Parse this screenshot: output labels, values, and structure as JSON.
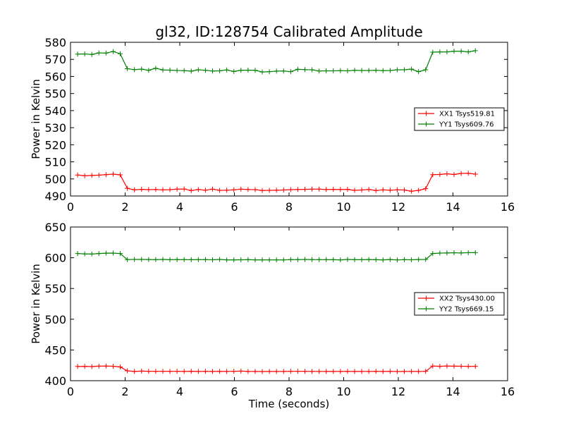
{
  "chart_data": [
    {
      "type": "line",
      "title": "gl32, ID:128754 Calibrated Amplitude",
      "xlabel": "",
      "ylabel": "Power in Kelvin",
      "xlim": [
        0,
        16
      ],
      "ylim": [
        490,
        580
      ],
      "xticks": [
        "0",
        "2",
        "4",
        "6",
        "8",
        "10",
        "12",
        "14",
        "16"
      ],
      "yticks": [
        "490",
        "500",
        "510",
        "520",
        "530",
        "540",
        "550",
        "560",
        "570",
        "580"
      ],
      "legend_position": "right",
      "x": [
        0.26,
        0.52,
        0.78,
        1.04,
        1.3,
        1.56,
        1.82,
        2.08,
        2.34,
        2.6,
        2.86,
        3.12,
        3.38,
        3.64,
        3.9,
        4.16,
        4.42,
        4.68,
        4.94,
        5.2,
        5.46,
        5.72,
        5.98,
        6.24,
        6.5,
        6.76,
        7.02,
        7.28,
        7.54,
        7.8,
        8.06,
        8.32,
        8.58,
        8.84,
        9.1,
        9.36,
        9.62,
        9.88,
        10.14,
        10.4,
        10.66,
        10.92,
        11.18,
        11.44,
        11.7,
        11.96,
        12.22,
        12.48,
        12.74,
        13.0,
        13.26,
        13.52,
        13.78,
        14.04,
        14.3,
        14.56,
        14.82
      ],
      "series": [
        {
          "name": "XX1 Tsys519.81",
          "color": "#ff0000",
          "values": [
            502.3,
            501.8,
            502.0,
            502.2,
            502.5,
            502.8,
            502.4,
            494.5,
            493.6,
            493.9,
            493.7,
            493.8,
            493.6,
            493.7,
            494.0,
            494.1,
            493.2,
            493.8,
            493.4,
            494.0,
            493.3,
            493.4,
            493.6,
            494.0,
            493.8,
            493.7,
            493.2,
            493.3,
            493.4,
            493.5,
            493.7,
            493.8,
            493.9,
            494.0,
            494.0,
            493.8,
            493.9,
            493.8,
            493.9,
            493.3,
            493.5,
            493.8,
            493.2,
            493.6,
            493.4,
            493.6,
            493.5,
            492.8,
            493.3,
            494.3,
            502.5,
            502.6,
            503.0,
            502.6,
            503.2,
            503.3,
            502.8
          ]
        },
        {
          "name": "YY1 Tsys609.76",
          "color": "#008000",
          "values": [
            573.1,
            573.2,
            572.9,
            573.8,
            573.7,
            574.6,
            573.3,
            564.5,
            564.0,
            564.3,
            563.6,
            564.8,
            563.8,
            563.7,
            563.5,
            563.4,
            563.1,
            563.9,
            563.6,
            563.2,
            563.3,
            563.8,
            562.9,
            563.6,
            563.7,
            563.6,
            562.6,
            562.8,
            563.1,
            563.2,
            562.8,
            564.2,
            564.0,
            563.9,
            563.2,
            563.3,
            563.3,
            563.4,
            563.3,
            563.6,
            563.5,
            563.5,
            563.6,
            563.4,
            563.5,
            563.9,
            563.9,
            564.3,
            562.8,
            563.9,
            574.2,
            574.4,
            574.4,
            574.8,
            574.8,
            574.4,
            575.1
          ]
        }
      ]
    },
    {
      "type": "line",
      "title": "",
      "xlabel": "Time (seconds)",
      "ylabel": "Power in Kelvin",
      "xlim": [
        0,
        16
      ],
      "ylim": [
        400,
        650
      ],
      "xticks": [
        "0",
        "2",
        "4",
        "6",
        "8",
        "10",
        "12",
        "14",
        "16"
      ],
      "yticks": [
        "400",
        "450",
        "500",
        "550",
        "600",
        "650"
      ],
      "legend_position": "right",
      "x": [
        0.26,
        0.52,
        0.78,
        1.04,
        1.3,
        1.56,
        1.82,
        2.08,
        2.34,
        2.6,
        2.86,
        3.12,
        3.38,
        3.64,
        3.9,
        4.16,
        4.42,
        4.68,
        4.94,
        5.2,
        5.46,
        5.72,
        5.98,
        6.24,
        6.5,
        6.76,
        7.02,
        7.28,
        7.54,
        7.8,
        8.06,
        8.32,
        8.58,
        8.84,
        9.1,
        9.36,
        9.62,
        9.88,
        10.14,
        10.4,
        10.66,
        10.92,
        11.18,
        11.44,
        11.7,
        11.96,
        12.22,
        12.48,
        12.74,
        13.0,
        13.26,
        13.52,
        13.78,
        14.04,
        14.3,
        14.56,
        14.82
      ],
      "series": [
        {
          "name": "XX2 Tsys430.00",
          "color": "#ff0000",
          "values": [
            423.2,
            423.4,
            423.0,
            423.6,
            423.8,
            423.5,
            422.4,
            416.0,
            415.0,
            415.6,
            415.4,
            415.2,
            415.3,
            415.2,
            415.3,
            415.1,
            415.4,
            415.1,
            415.3,
            415.0,
            415.2,
            415.1,
            415.3,
            415.6,
            415.1,
            415.0,
            414.9,
            415.0,
            415.1,
            415.0,
            415.3,
            415.3,
            415.2,
            415.1,
            415.1,
            415.0,
            415.0,
            415.1,
            415.2,
            415.0,
            415.1,
            415.1,
            415.2,
            415.0,
            415.2,
            414.9,
            415.0,
            415.1,
            415.0,
            415.3,
            423.8,
            423.4,
            423.9,
            423.6,
            423.5,
            423.3,
            423.4
          ]
        },
        {
          "name": "YY2 Tsys669.15",
          "color": "#008000",
          "values": [
            606.8,
            606.3,
            606.1,
            606.9,
            607.4,
            607.6,
            606.8,
            597.0,
            597.2,
            597.3,
            597.1,
            596.9,
            597.2,
            596.8,
            597.0,
            596.9,
            596.8,
            596.9,
            597.0,
            596.7,
            597.2,
            596.6,
            596.6,
            596.7,
            596.9,
            596.6,
            596.6,
            596.5,
            596.6,
            596.5,
            597.0,
            596.9,
            597.2,
            597.0,
            596.9,
            596.9,
            596.8,
            596.6,
            597.3,
            596.8,
            596.8,
            597.1,
            596.8,
            596.6,
            597.1,
            596.5,
            596.9,
            596.7,
            597.1,
            597.2,
            606.9,
            607.6,
            607.8,
            608.1,
            607.8,
            608.2,
            608.3
          ]
        }
      ]
    }
  ]
}
